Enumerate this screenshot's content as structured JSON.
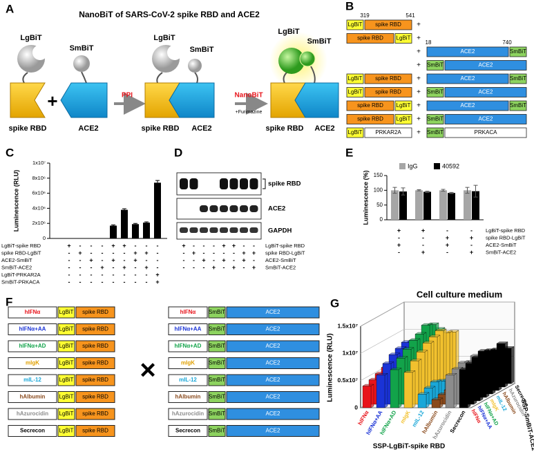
{
  "figure": {
    "A": {
      "letter": "A",
      "title": "NanoBiT of SARS-CoV-2 spike RBD and ACE2",
      "lgbit": "LgBiT",
      "smbit": "SmBiT",
      "spike": "spike RBD",
      "ace2": "ACE2",
      "plus": "+",
      "ppi": "PPI",
      "nanobit": "NanoBiT",
      "substrate": "+Furimazine"
    },
    "B": {
      "letter": "B",
      "positions": [
        319,
        541,
        18,
        740
      ],
      "plus": "+",
      "rows": [
        {
          "left": [
            "LgBiT",
            "spike RBD"
          ],
          "right": []
        },
        {
          "left": [
            "spike RBD",
            "LgBiT"
          ],
          "right": []
        },
        {
          "left": [],
          "right": [
            "ACE2",
            "SmBiT"
          ]
        },
        {
          "left": [],
          "right": [
            "SmBiT",
            "ACE2"
          ]
        },
        {
          "left": [
            "LgBiT",
            "spike RBD"
          ],
          "right": [
            "ACE2",
            "SmBiT"
          ]
        },
        {
          "left": [
            "LgBiT",
            "spike RBD"
          ],
          "right": [
            "SmBiT",
            "ACE2"
          ]
        },
        {
          "left": [
            "spike RBD",
            "LgBiT"
          ],
          "right": [
            "ACE2",
            "SmBiT"
          ]
        },
        {
          "left": [
            "spike RBD",
            "LgBiT"
          ],
          "right": [
            "SmBiT",
            "ACE2"
          ]
        },
        {
          "left": [
            "LgBiT",
            "PRKAR2A"
          ],
          "right": [
            "SmBiT",
            "PRKACA"
          ]
        }
      ]
    },
    "D": {
      "letter": "D",
      "bands": [
        "spike RBD",
        "ACE2",
        "GAPDH"
      ],
      "conditions": [
        {
          "name": "LgBiT-spike RBD",
          "signs": [
            "+",
            "-",
            "-",
            "-",
            "+",
            "+",
            "-",
            "-"
          ]
        },
        {
          "name": "spike RBD-LgBiT",
          "signs": [
            "-",
            "+",
            "-",
            "-",
            "-",
            "-",
            "+",
            "+"
          ]
        },
        {
          "name": "ACE2-SmBiT",
          "signs": [
            "-",
            "-",
            "+",
            "-",
            "+",
            "-",
            "+",
            "-"
          ]
        },
        {
          "name": "SmBiT-ACE2",
          "signs": [
            "-",
            "-",
            "-",
            "+",
            "-",
            "+",
            "-",
            "+"
          ]
        }
      ]
    },
    "F": {
      "letter": "F",
      "times": "×",
      "signals": [
        "hIFNα",
        "hIFNα+AA",
        "hIFNα+AD",
        "mIgK",
        "mIL-12",
        "hAlbumin",
        "hAzurocidin",
        "Secrecon"
      ],
      "signal_colors": [
        "#e8141b",
        "#1a33d6",
        "#12a34a",
        "#e0a000",
        "#1aa7d8",
        "#8a4a1c",
        "#8c8c8c",
        "#000000"
      ],
      "left": [
        "LgBiT",
        "spike RBD"
      ],
      "right": [
        "SmBiT",
        "ACE2"
      ]
    }
  },
  "chart_data": [
    {
      "type": "bar",
      "letter": "C",
      "ylabel": "Luminescence (RLU)",
      "color": "#000000",
      "values": [
        0,
        0,
        0,
        0,
        1700000,
        3800000,
        1900000,
        2100000,
        7400000
      ],
      "errors": [
        0,
        0,
        0,
        0,
        100000,
        150000,
        100000,
        100000,
        300000
      ],
      "ylim": [
        0,
        10000000
      ],
      "yticks": [
        0,
        {
          "value": 2000000,
          "label": "2x10⁶"
        },
        {
          "value": 4000000,
          "label": "4x10⁶"
        },
        {
          "value": 6000000,
          "label": "6x10⁶"
        },
        {
          "value": 8000000,
          "label": "8x10⁶"
        },
        {
          "value": 10000000,
          "label": "1x10⁷"
        }
      ],
      "conditions": [
        {
          "name": "LgBiT-spike RBD",
          "signs": [
            "+",
            "-",
            "-",
            "-",
            "+",
            "+",
            "-",
            "-",
            "-"
          ]
        },
        {
          "name": "spike RBD-LgBiT",
          "signs": [
            "-",
            "+",
            "-",
            "-",
            "-",
            "-",
            "+",
            "+",
            "-"
          ]
        },
        {
          "name": "ACE2-SmBiT",
          "signs": [
            "-",
            "-",
            "+",
            "-",
            "+",
            "-",
            "+",
            "-",
            "-"
          ]
        },
        {
          "name": "SmBiT-ACE2",
          "signs": [
            "-",
            "-",
            "-",
            "+",
            "-",
            "+",
            "-",
            "+",
            "-"
          ]
        },
        {
          "name": "LgBiT-PRKAR2A",
          "signs": [
            "-",
            "-",
            "-",
            "-",
            "-",
            "-",
            "-",
            "-",
            "+"
          ]
        },
        {
          "name": "SmBiT-PRKACA",
          "signs": [
            "-",
            "-",
            "-",
            "-",
            "-",
            "-",
            "-",
            "-",
            "+"
          ]
        }
      ]
    },
    {
      "type": "groupedbar",
      "letter": "E",
      "ylabel": "Luminescence (%)",
      "series": [
        {
          "name": "IgG",
          "color": "#a6a6a6",
          "values": [
            100,
            100,
            100,
            100
          ],
          "errors": [
            10,
            2,
            3,
            10
          ]
        },
        {
          "name": "40592",
          "color": "#000000",
          "values": [
            96,
            95,
            91,
            97
          ],
          "errors": [
            12,
            2,
            2,
            20
          ]
        }
      ],
      "ylim": [
        0,
        150
      ],
      "yticks": [
        0,
        50,
        100,
        150
      ],
      "conditions": [
        {
          "name": "LgBiT-spike RBD",
          "signs": [
            "+",
            "+",
            "-",
            "-"
          ]
        },
        {
          "name": "spike RBD-LgBiT",
          "signs": [
            "-",
            "-",
            "+",
            "+"
          ]
        },
        {
          "name": "ACE2-SmBiT",
          "signs": [
            "+",
            "-",
            "+",
            "-"
          ]
        },
        {
          "name": "SmBiT-ACE2",
          "signs": [
            "-",
            "+",
            "-",
            "+"
          ]
        }
      ]
    },
    {
      "type": "bar3d",
      "letter": "G",
      "title": "Cell culture medium",
      "ylabel": "Luminescence (RLU)",
      "xlabel": "SSP-LgBiT-spike RBD",
      "zlabel": "SSP-SmBiT-ACE2",
      "categories": [
        "hIFNα",
        "hIFNα+AA",
        "hIFNα+AD",
        "mIgK",
        "mIL-12",
        "hAlbumin",
        "hAzurocidin",
        "Secrecon"
      ],
      "colors": [
        "#e8141b",
        "#1a33d6",
        "#12a34a",
        "#f2c12e",
        "#1aa7d8",
        "#8a4a1c",
        "#8c8c8c",
        "#000000"
      ],
      "series": [
        {
          "name": "hIFNα",
          "values": [
            4000000,
            6000000,
            7000000,
            6500000,
            2500000,
            1500000,
            6000000,
            7000000
          ]
        },
        {
          "name": "hIFNα+AA",
          "values": [
            4500000,
            7500000,
            8500000,
            8000000,
            3000000,
            1800000,
            6500000,
            7500000
          ]
        },
        {
          "name": "hIFNα+AD",
          "values": [
            5000000,
            8500000,
            9500000,
            9000000,
            3500000,
            2000000,
            7000000,
            8000000
          ]
        },
        {
          "name": "mIgK",
          "values": [
            5500000,
            9000000,
            10500000,
            10000000,
            3000000,
            2200000,
            6500000,
            8500000
          ]
        },
        {
          "name": "mIL-12",
          "values": [
            5000000,
            9500000,
            11000000,
            10500000,
            2500000,
            2000000,
            7000000,
            8000000
          ]
        },
        {
          "name": "hAlbumin",
          "values": [
            4500000,
            9000000,
            12000000,
            11000000,
            2000000,
            1500000,
            6000000,
            7500000
          ]
        },
        {
          "name": "hAzurocidin",
          "values": [
            4000000,
            8500000,
            11500000,
            10000000,
            1500000,
            1000000,
            5500000,
            8000000
          ]
        },
        {
          "name": "Secrecon",
          "values": [
            3500000,
            8000000,
            10000000,
            9500000,
            1000000,
            800000,
            5000000,
            6500000
          ]
        }
      ],
      "ylim": [
        0,
        15000000
      ],
      "yticks": [
        0,
        {
          "value": 5000000,
          "label": "0.5x10⁷"
        },
        {
          "value": 10000000,
          "label": "1x10⁷"
        },
        {
          "value": 15000000,
          "label": "1.5x10⁷"
        }
      ]
    }
  ]
}
